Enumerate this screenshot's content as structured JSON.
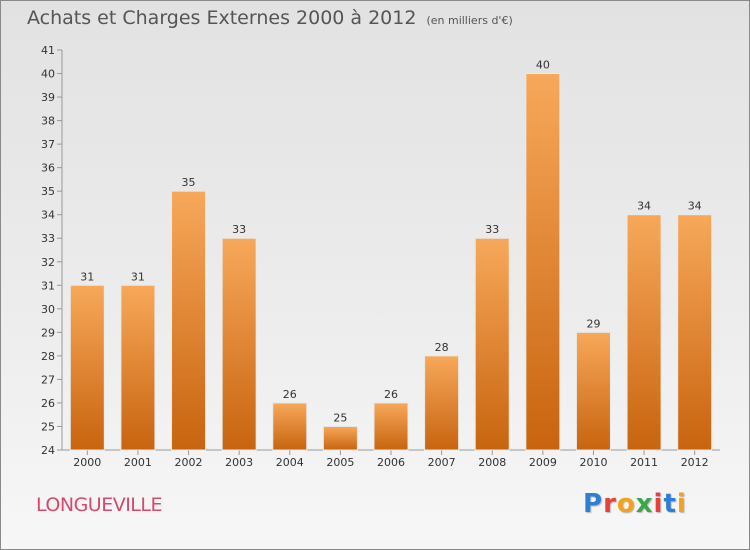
{
  "header": {
    "title": "Achats et Charges Externes 2000 à 2012",
    "subtitle": "(en milliers d'€)"
  },
  "footer": {
    "commune": "LONGUEVILLE",
    "logo": "Proxiti",
    "logo_colors": [
      "#2e7fd1",
      "#e8413a",
      "#f0a220",
      "#3aa84a",
      "#e8413a",
      "#2e7fd1",
      "#f0a220"
    ]
  },
  "colors": {
    "bar_top": "#f7a85a",
    "bar_bottom": "#c8640f",
    "axis": "#999999",
    "text": "#333333"
  },
  "chart_data": {
    "type": "bar",
    "categories": [
      "2000",
      "2001",
      "2002",
      "2003",
      "2004",
      "2005",
      "2006",
      "2007",
      "2008",
      "2009",
      "2010",
      "2011",
      "2012"
    ],
    "values": [
      31,
      31,
      35,
      33,
      26,
      25,
      26,
      28,
      33,
      40,
      29,
      34,
      34
    ],
    "title": "Achats et Charges Externes 2000 à 2012",
    "ylim": [
      24,
      41
    ],
    "yticks": [
      24,
      25,
      26,
      27,
      28,
      29,
      30,
      31,
      32,
      33,
      34,
      35,
      36,
      37,
      38,
      39,
      40,
      41
    ],
    "grid": false
  }
}
